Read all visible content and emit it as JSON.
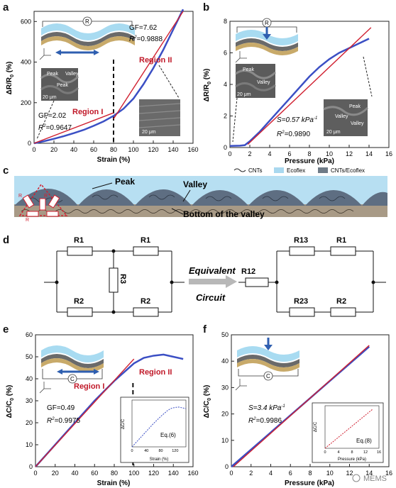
{
  "panels": {
    "a": {
      "label": "a",
      "xlabel": "Strain (%)",
      "ylabel": "ΔR/R",
      "ylabel_sub": "0",
      "ylabel_unit": "(%)",
      "gf_high": "GF=7.62",
      "r2_high_pre": "R",
      "r2_high_val": "=0.9888",
      "gf_low": "GF=2.02",
      "r2_low_pre": "R",
      "r2_low_val": "=0.9647",
      "region1": "Region I",
      "region2": "Region II",
      "sem_scale_left": "20 μm",
      "sem_scale_right": "20 μm",
      "sem_peak1": "Peak",
      "sem_peak2": "Peak",
      "sem_valley": "Valley",
      "r_label": "R"
    },
    "b": {
      "label": "b",
      "xlabel": "Pressure (kPa)",
      "ylabel": "ΔR/R",
      "ylabel_sub": "0",
      "ylabel_unit": "(%)",
      "s_text": "S=0.57 kPa",
      "s_exp": "-1",
      "r2_pre": "R",
      "r2_val": "=0.9890",
      "sem_scale_left": "20 μm",
      "sem_scale_right": "20 μm",
      "sem_peak": "Peak",
      "sem_valley": "Valley",
      "sem_peak_r": "Peak",
      "sem_valley_r": "Valley",
      "r_label": "R"
    },
    "c": {
      "label": "c",
      "legend": [
        "CNTs",
        "Ecoflex",
        "CNTs/Ecoflex"
      ],
      "peak": "Peak",
      "valley": "Valley",
      "bottom": "Bottom of the valley",
      "r1": "R",
      "r2": "R",
      "r3": "R"
    },
    "d": {
      "label": "d",
      "left": {
        "r1a": "R1",
        "r1b": "R1",
        "r2a": "R2",
        "r2b": "R2",
        "r3": "R3"
      },
      "arrow_top": "Equivalent",
      "arrow_bottom": "Circuit",
      "right": {
        "r12": "R12",
        "r13": "R13",
        "r1": "R1",
        "r23": "R23",
        "r2": "R2"
      }
    },
    "e": {
      "label": "e",
      "xlabel": "Strain (%)",
      "ylabel": "ΔC/C",
      "ylabel_sub": "0",
      "ylabel_unit": "(%)",
      "gf": "GF=0.49",
      "r2_pre": "R",
      "r2_val": "=0.9975",
      "region1": "Region I",
      "region2": "Region II",
      "c_label": "C",
      "inset_xlabel": "Strain (%)",
      "inset_ylabel": "ΔC/C",
      "inset_eq": "Eq.(6)"
    },
    "f": {
      "label": "f",
      "xlabel": "Pressure (kPa)",
      "ylabel": "ΔC/C",
      "ylabel_sub": "0",
      "ylabel_unit": "(%)",
      "s_text": "S=3.4 kPa",
      "s_exp": "-1",
      "r2_pre": "R",
      "r2_val": "=0.9986",
      "c_label": "C",
      "inset_xlabel": "Pressure (kPa)",
      "inset_ylabel": "ΔC/C",
      "inset_eq": "Eq.(8)"
    }
  },
  "watermark": "MEMS",
  "chart_data": [
    {
      "type": "line",
      "panel": "a",
      "xlabel": "Strain (%)",
      "ylabel": "ΔR/R0 (%)",
      "xlim": [
        0,
        160
      ],
      "ylim": [
        0,
        650
      ],
      "xticks": [
        0,
        20,
        40,
        60,
        80,
        100,
        120,
        140,
        160
      ],
      "yticks": [
        0,
        200,
        400,
        600
      ],
      "series": [
        {
          "x": [
            0,
            10,
            20,
            30,
            40,
            50,
            60,
            70,
            80,
            90,
            100,
            110,
            120,
            130,
            140,
            150
          ],
          "y": [
            0,
            10,
            22,
            35,
            50,
            66,
            86,
            108,
            135,
            170,
            220,
            290,
            370,
            460,
            560,
            660
          ]
        }
      ],
      "fits": [
        {
          "x": [
            0,
            80
          ],
          "y": [
            0,
            150
          ]
        },
        {
          "x": [
            80,
            150
          ],
          "y": [
            120,
            650
          ]
        }
      ],
      "divider_x": 80
    },
    {
      "type": "line",
      "panel": "b",
      "xlabel": "Pressure (kPa)",
      "ylabel": "ΔR/R0 (%)",
      "xlim": [
        0,
        16
      ],
      "ylim": [
        0,
        8
      ],
      "xticks": [
        0,
        2,
        4,
        6,
        8,
        10,
        12,
        14,
        16
      ],
      "yticks": [
        0,
        2,
        4,
        6,
        8
      ],
      "series": [
        {
          "x": [
            0,
            1,
            1.5,
            2,
            3,
            4,
            5,
            6,
            7,
            8,
            9,
            10,
            11,
            12,
            13,
            14
          ],
          "y": [
            0.1,
            0.12,
            0.15,
            0.4,
            1.0,
            1.7,
            2.4,
            3.1,
            3.8,
            4.5,
            5.1,
            5.6,
            6.0,
            6.3,
            6.6,
            6.9
          ]
        }
      ],
      "fits": [
        {
          "x": [
            1.8,
            14.2
          ],
          "y": [
            0.2,
            7.6
          ]
        }
      ]
    },
    {
      "type": "line",
      "panel": "e",
      "xlabel": "Strain (%)",
      "ylabel": "ΔC/C0 (%)",
      "xlim": [
        0,
        160
      ],
      "ylim": [
        0,
        60
      ],
      "xticks": [
        0,
        20,
        40,
        60,
        80,
        100,
        120,
        140,
        160
      ],
      "yticks": [
        0,
        10,
        20,
        30,
        40,
        50,
        60
      ],
      "series": [
        {
          "x": [
            0,
            20,
            40,
            60,
            80,
            100,
            110,
            120,
            130,
            140,
            150
          ],
          "y": [
            0,
            10,
            20,
            30,
            39,
            47,
            49.5,
            50.5,
            51,
            50,
            49
          ]
        }
      ],
      "fits": [
        {
          "x": [
            0,
            100
          ],
          "y": [
            0,
            49
          ]
        }
      ],
      "divider_x": 99,
      "inset": {
        "xticks": [
          0,
          40,
          80,
          120
        ],
        "xlim": [
          0,
          150
        ],
        "ylim": [
          0,
          60
        ]
      }
    },
    {
      "type": "line",
      "panel": "f",
      "xlabel": "Pressure (kPa)",
      "ylabel": "ΔC/C0 (%)",
      "xlim": [
        0,
        16
      ],
      "ylim": [
        0,
        50
      ],
      "xticks": [
        0,
        2,
        4,
        6,
        8,
        10,
        12,
        14,
        16
      ],
      "yticks": [
        0,
        10,
        20,
        30,
        40,
        50
      ],
      "series": [
        {
          "x": [
            0,
            2,
            4,
            6,
            8,
            10,
            12,
            14
          ],
          "y": [
            0,
            6.5,
            13,
            19.5,
            26,
            32.5,
            39,
            45.5
          ]
        }
      ],
      "fits": [
        {
          "x": [
            0.2,
            14
          ],
          "y": [
            0,
            46
          ]
        }
      ],
      "inset": {
        "xticks": [
          0,
          4,
          8,
          12,
          16
        ],
        "xlim": [
          0,
          16
        ],
        "ylim": [
          0,
          50
        ]
      }
    }
  ]
}
